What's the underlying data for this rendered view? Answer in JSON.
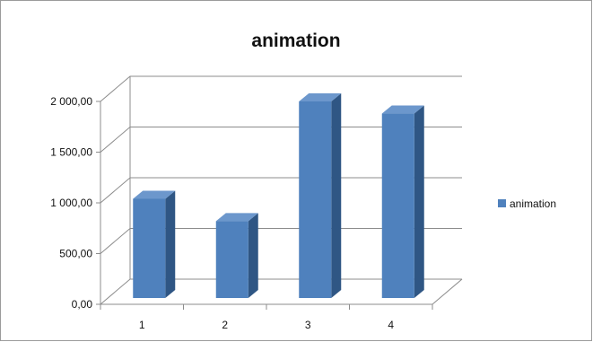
{
  "chart_data": {
    "type": "bar",
    "title": "animation",
    "categories": [
      "1",
      "2",
      "3",
      "4"
    ],
    "series": [
      {
        "name": "animation",
        "values": [
          1040,
          820,
          2000,
          1880
        ]
      }
    ],
    "ylim": [
      0,
      2000
    ],
    "yticks": [
      0,
      500,
      1000,
      1500,
      2000
    ],
    "ytick_labels": [
      "0,00",
      "500,00",
      "1 000,00",
      "1 500,00",
      "2 000,00"
    ],
    "grid": true,
    "legend": "right",
    "colors": {
      "bar_front": "#4F81BD",
      "bar_side": "#2F5684",
      "bar_top": "#6C97CC",
      "border": "#9B9B9B",
      "grid": "#8C8C8C"
    }
  }
}
